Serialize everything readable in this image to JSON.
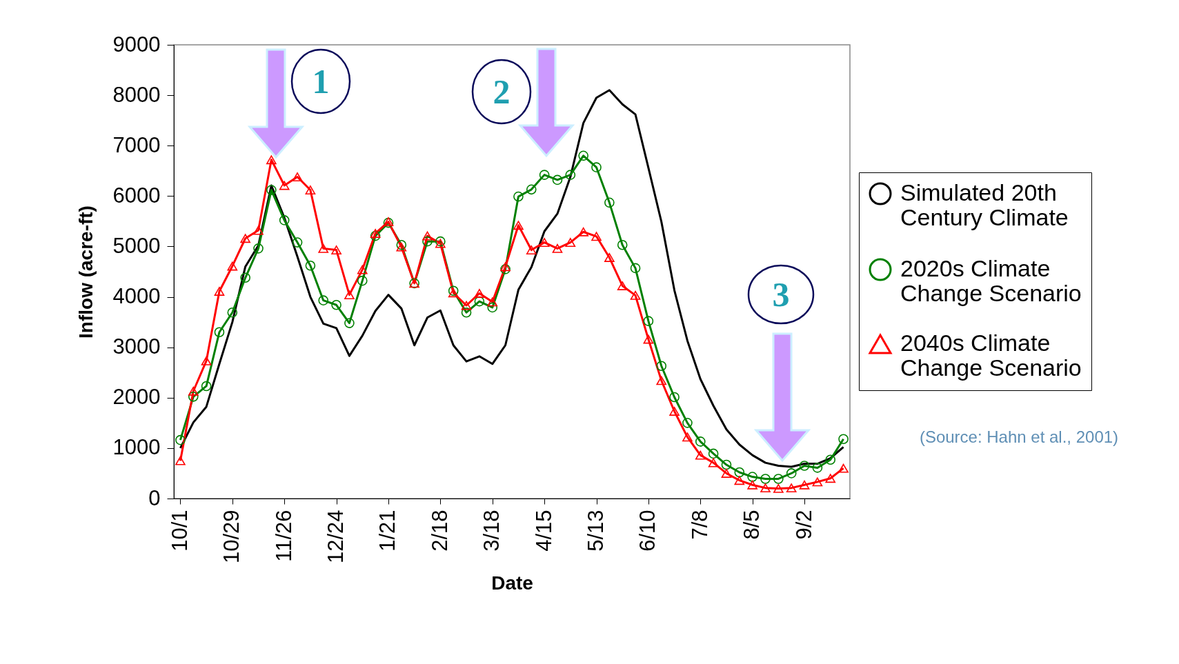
{
  "chart_data": {
    "type": "line",
    "xlabel": "Date",
    "ylabel": "Inflow (acre-ft)",
    "categories": [
      "10/1",
      null,
      null,
      null,
      "10/29",
      null,
      null,
      null,
      "11/26",
      null,
      null,
      null,
      "12/24",
      null,
      null,
      null,
      "1/21",
      null,
      null,
      null,
      "2/18",
      null,
      null,
      null,
      "3/18",
      null,
      null,
      null,
      "4/15",
      null,
      null,
      null,
      "5/13",
      null,
      null,
      null,
      "6/10",
      null,
      null,
      null,
      "7/8",
      null,
      null,
      null,
      "8/5",
      null,
      null,
      null,
      "9/2",
      null,
      null,
      null
    ],
    "series": [
      {
        "name": "Simulated 20th Century Climate",
        "color": "#000000",
        "marker": "none",
        "values": [
          1000,
          1510,
          1820,
          2670,
          3500,
          4600,
          5020,
          6210,
          5570,
          4800,
          4000,
          3470,
          3380,
          2830,
          3230,
          3720,
          4040,
          3770,
          3040,
          3590,
          3730,
          3040,
          2720,
          2820,
          2670,
          3040,
          4140,
          4590,
          5300,
          5650,
          6380,
          7450,
          7950,
          8100,
          7820,
          7620,
          6560,
          5490,
          4130,
          3130,
          2370,
          1840,
          1370,
          1070,
          860,
          710,
          650,
          630,
          690,
          690,
          800,
          1020
        ]
      },
      {
        "name": "2020s Climate Change Scenario",
        "color": "#008000",
        "marker": "circle",
        "values": [
          1160,
          2020,
          2230,
          3300,
          3690,
          4380,
          4960,
          6120,
          5520,
          5080,
          4620,
          3930,
          3840,
          3480,
          4320,
          5210,
          5470,
          5030,
          4270,
          5100,
          5100,
          4120,
          3690,
          3910,
          3790,
          4550,
          5990,
          6130,
          6420,
          6320,
          6420,
          6800,
          6570,
          5870,
          5030,
          4570,
          3520,
          2630,
          2010,
          1500,
          1130,
          890,
          670,
          520,
          430,
          390,
          390,
          500,
          650,
          610,
          770,
          1180
        ]
      },
      {
        "name": "2040s Climate Change Scenario",
        "color": "#ff0000",
        "marker": "triangle",
        "values": [
          750,
          2130,
          2730,
          4110,
          4610,
          5160,
          5320,
          6720,
          6210,
          6380,
          6120,
          4960,
          4930,
          4040,
          4540,
          5260,
          5490,
          4990,
          4270,
          5210,
          5060,
          4080,
          3830,
          4070,
          3900,
          4600,
          5420,
          4930,
          5080,
          4960,
          5080,
          5290,
          5200,
          4780,
          4220,
          4030,
          3160,
          2340,
          1730,
          1220,
          860,
          710,
          500,
          360,
          270,
          210,
          200,
          210,
          270,
          330,
          400,
          600
        ]
      }
    ],
    "ylim": [
      0,
      9000
    ],
    "yticks": [
      0,
      1000,
      2000,
      3000,
      4000,
      5000,
      6000,
      7000,
      8000,
      9000
    ],
    "legend": "right",
    "annotations": [
      "1",
      "2",
      "3",
      "(Source: Hahn et al., 2001)"
    ]
  }
}
